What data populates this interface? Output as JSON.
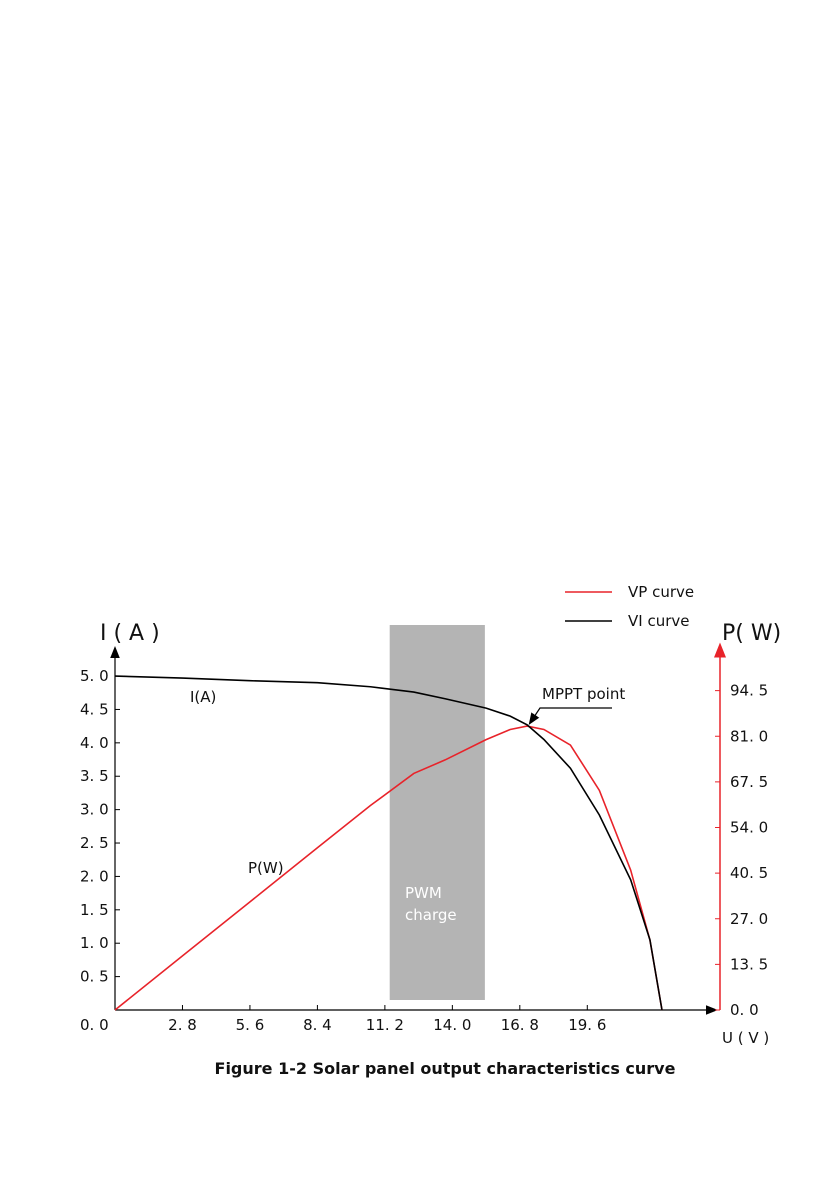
{
  "chart_data": {
    "type": "line",
    "title": "Figure 1-2 Solar panel output characteristics curve",
    "x_label": "U ( V )",
    "y_label": "I ( A )",
    "y2_label": "P( W)",
    "x": [
      0,
      2.8,
      5.6,
      8.4,
      10.6,
      12.4,
      13.7,
      15.4,
      16.4,
      17.1,
      17.8,
      18.9,
      20.1,
      21.4,
      22.2,
      22.7
    ],
    "series": [
      {
        "name": "VP curve",
        "color": "#e8232a",
        "axis": "y2",
        "values": [
          0,
          16,
          32,
          48,
          60.5,
          70,
          74,
          80,
          83,
          84,
          83,
          78.4,
          65,
          41.4,
          20.7,
          0
        ]
      },
      {
        "name": "VI  curve",
        "color": "#000000",
        "values": [
          5.0,
          4.97,
          4.93,
          4.9,
          4.84,
          4.76,
          4.66,
          4.52,
          4.4,
          4.27,
          4.05,
          3.62,
          2.92,
          1.95,
          1.05,
          0
        ]
      }
    ],
    "xlim": [
      0,
      24.9
    ],
    "xticks": [
      {
        "value": 2.8,
        "label": "2. 8"
      },
      {
        "value": 5.6,
        "label": "5. 6"
      },
      {
        "value": 8.4,
        "label": "8. 4"
      },
      {
        "value": 11.2,
        "label": "11. 2"
      },
      {
        "value": 14,
        "label": "14. 0"
      },
      {
        "value": 16.8,
        "label": "16. 8"
      },
      {
        "value": 19.6,
        "label": "19. 6"
      }
    ],
    "ylim": [
      0,
      5.42
    ],
    "yticks": [
      {
        "value": 0,
        "label": "0. 0"
      },
      {
        "value": 0.5,
        "label": "0. 5"
      },
      {
        "value": 1,
        "label": "1. 0"
      },
      {
        "value": 1.5,
        "label": "1. 5"
      },
      {
        "value": 2,
        "label": "2. 0"
      },
      {
        "value": 2.5,
        "label": "2. 5"
      },
      {
        "value": 3,
        "label": "3. 0"
      },
      {
        "value": 3.5,
        "label": "3. 5"
      },
      {
        "value": 4,
        "label": "4. 0"
      },
      {
        "value": 4.5,
        "label": "4. 5"
      },
      {
        "value": 5,
        "label": "5. 0"
      }
    ],
    "y2lim": [
      0,
      108
    ],
    "y2ticks": [
      {
        "value": 0,
        "label": "0. 0"
      },
      {
        "value": 13.5,
        "label": "13. 5"
      },
      {
        "value": 27,
        "label": "27. 0"
      },
      {
        "value": 40.5,
        "label": "40. 5"
      },
      {
        "value": 54,
        "label": "54. 0"
      },
      {
        "value": 67.5,
        "label": "67. 5"
      },
      {
        "value": 81,
        "label": "81. 0"
      },
      {
        "value": 94.5,
        "label": "94. 5"
      }
    ],
    "y2_color": "#e8232a",
    "pwm_band": [
      11.4,
      15.35
    ],
    "pwm_color": "#b4b4b4",
    "annotations": [
      "I(A)",
      "P(W)",
      "PWM",
      "charge",
      "MPPT point"
    ],
    "legend": "top-right"
  }
}
